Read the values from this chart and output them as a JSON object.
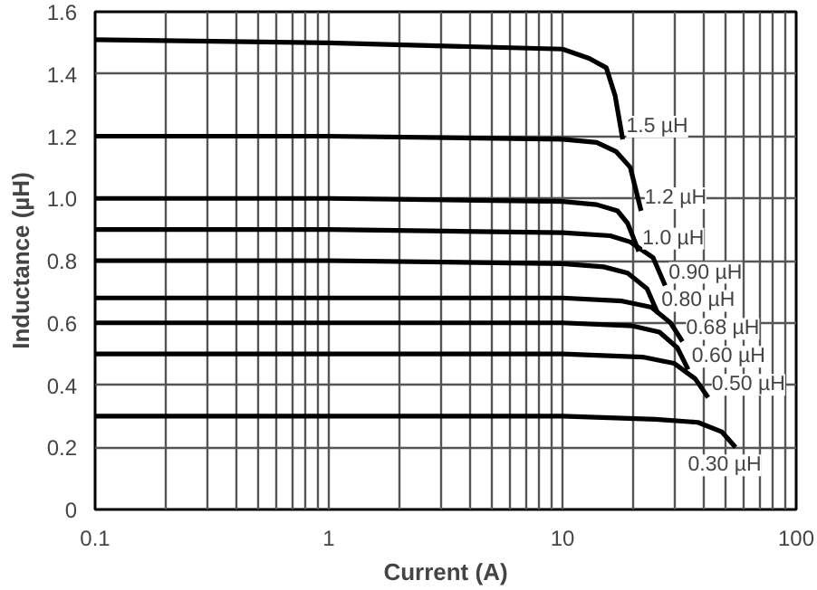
{
  "chart_data": {
    "type": "line",
    "xlabel": "Current (A)",
    "ylabel": "Inductance (µH)",
    "log": "x",
    "xlim": [
      0.1,
      100
    ],
    "xticks": [
      0.1,
      1,
      10,
      100,
      {
        "value": 0.2,
        "label": null
      },
      {
        "value": 0.3,
        "label": null
      },
      {
        "value": 0.4,
        "label": null
      },
      {
        "value": 0.5,
        "label": null
      },
      {
        "value": 0.6,
        "label": null
      },
      {
        "value": 0.7,
        "label": null
      },
      {
        "value": 0.8,
        "label": null
      },
      {
        "value": 0.9,
        "label": null
      },
      {
        "value": 2,
        "label": null
      },
      {
        "value": 3,
        "label": null
      },
      {
        "value": 4,
        "label": null
      },
      {
        "value": 5,
        "label": null
      },
      {
        "value": 6,
        "label": null
      },
      {
        "value": 7,
        "label": null
      },
      {
        "value": 8,
        "label": null
      },
      {
        "value": 9,
        "label": null
      },
      {
        "value": 20,
        "label": null
      },
      {
        "value": 30,
        "label": null
      },
      {
        "value": 40,
        "label": null
      },
      {
        "value": 50,
        "label": null
      },
      {
        "value": 60,
        "label": null
      },
      {
        "value": 70,
        "label": null
      },
      {
        "value": 80,
        "label": null
      },
      {
        "value": 90,
        "label": null
      }
    ],
    "ylim": [
      0,
      1.6
    ],
    "yticks": [
      0,
      0.2,
      0.4,
      0.6,
      0.8,
      {
        "value": 1.0,
        "label": "1.0"
      },
      1.2,
      1.4,
      1.6
    ],
    "grid": true,
    "legend": false,
    "marker": "none",
    "line_style": "solid",
    "series": [
      {
        "name": "1.5 µH",
        "color": "#000000",
        "x": [
          0.1,
          1,
          10,
          13,
          15.4,
          16.8,
          18.1
        ],
        "values": [
          1.51,
          1.5,
          1.48,
          1.45,
          1.42,
          1.33,
          1.19
        ]
      },
      {
        "name": "1.2 µH",
        "color": "#000000",
        "x": [
          0.1,
          1,
          10,
          14,
          17,
          19.5,
          21.7
        ],
        "values": [
          1.2,
          1.2,
          1.19,
          1.18,
          1.15,
          1.1,
          0.96
        ]
      },
      {
        "name": "1.0 µH",
        "color": "#000000",
        "x": [
          0.1,
          1,
          10,
          14,
          17.2,
          19,
          21.2
        ],
        "values": [
          1.0,
          1.0,
          0.99,
          0.98,
          0.96,
          0.92,
          0.83
        ]
      },
      {
        "name": "0.90 µH",
        "color": "#000000",
        "x": [
          0.1,
          1,
          10,
          16,
          19.5,
          24.4,
          27.5
        ],
        "values": [
          0.9,
          0.9,
          0.89,
          0.88,
          0.86,
          0.81,
          0.72
        ]
      },
      {
        "name": "0.80 µH",
        "color": "#000000",
        "x": [
          0.1,
          1,
          10,
          15,
          19,
          23,
          25.6
        ],
        "values": [
          0.8,
          0.8,
          0.79,
          0.78,
          0.76,
          0.71,
          0.63
        ]
      },
      {
        "name": "0.68 µH",
        "color": "#000000",
        "x": [
          0.1,
          1,
          10,
          18,
          24,
          29,
          32.6
        ],
        "values": [
          0.68,
          0.68,
          0.68,
          0.67,
          0.65,
          0.6,
          0.54
        ]
      },
      {
        "name": "0.60 µH",
        "color": "#000000",
        "x": [
          0.1,
          1,
          10,
          20,
          26,
          31,
          34.5
        ],
        "values": [
          0.6,
          0.6,
          0.6,
          0.59,
          0.57,
          0.52,
          0.45
        ]
      },
      {
        "name": "0.50 µH",
        "color": "#000000",
        "x": [
          0.1,
          1,
          10,
          22,
          30,
          37,
          42
        ],
        "values": [
          0.5,
          0.5,
          0.5,
          0.49,
          0.47,
          0.42,
          0.36
        ]
      },
      {
        "name": "0.30 µH",
        "color": "#000000",
        "x": [
          0.1,
          1,
          10,
          25,
          38,
          48,
          55
        ],
        "values": [
          0.3,
          0.3,
          0.3,
          0.29,
          0.28,
          0.25,
          0.2
        ]
      }
    ]
  }
}
